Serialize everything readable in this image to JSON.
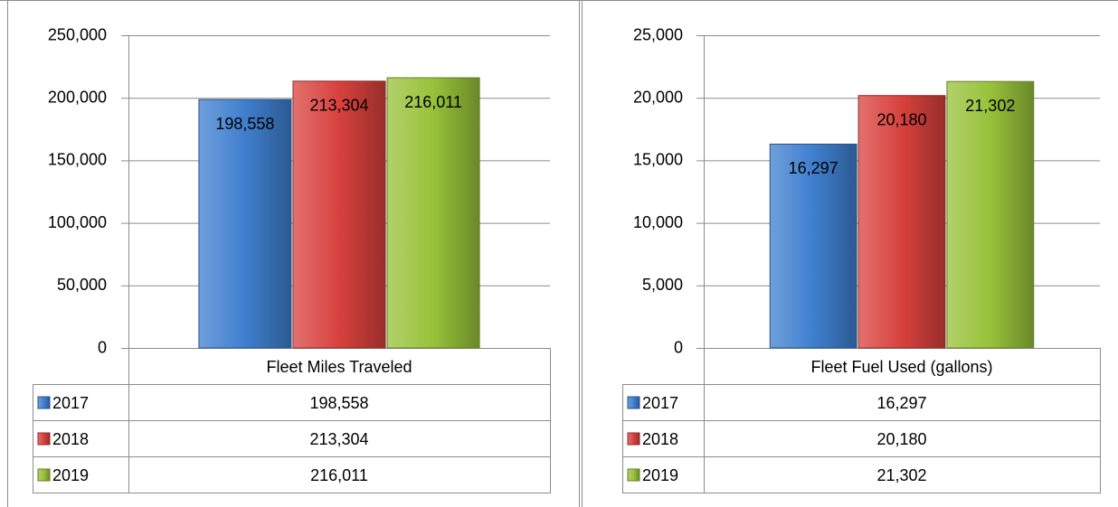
{
  "chart_data": [
    {
      "type": "bar",
      "categories": [
        "Fleet Miles Traveled"
      ],
      "series": [
        {
          "name": "2017",
          "color": "#3f7fcf",
          "values": [
            198558
          ],
          "value_labels": [
            "198,558"
          ]
        },
        {
          "name": "2018",
          "color": "#d8413d",
          "values": [
            213304
          ],
          "value_labels": [
            "213,304"
          ]
        },
        {
          "name": "2019",
          "color": "#98c23a",
          "values": [
            216011
          ],
          "value_labels": [
            "216,011"
          ]
        }
      ],
      "ylim": [
        0,
        250000
      ],
      "yticks": [
        0,
        {
          "value": 50000,
          "label": "50,000"
        },
        {
          "value": 100000,
          "label": "100,000"
        },
        {
          "value": 150000,
          "label": "150,000"
        },
        {
          "value": 200000,
          "label": "200,000"
        },
        {
          "value": 250000,
          "label": "250,000"
        }
      ],
      "grid": true
    },
    {
      "type": "bar",
      "categories": [
        "Fleet Fuel Used (gallons)"
      ],
      "series": [
        {
          "name": "2017",
          "color": "#3f7fcf",
          "values": [
            16297
          ],
          "value_labels": [
            "16,297"
          ]
        },
        {
          "name": "2018",
          "color": "#d8413d",
          "values": [
            20180
          ],
          "value_labels": [
            "20,180"
          ]
        },
        {
          "name": "2019",
          "color": "#98c23a",
          "values": [
            21302
          ],
          "value_labels": [
            "21,302"
          ]
        }
      ],
      "ylim": [
        0,
        25000
      ],
      "yticks": [
        0,
        {
          "value": 5000,
          "label": "5,000"
        },
        {
          "value": 10000,
          "label": "10,000"
        },
        {
          "value": 15000,
          "label": "15,000"
        },
        {
          "value": 20000,
          "label": "20,000"
        },
        {
          "value": 25000,
          "label": "25,000"
        }
      ],
      "grid": true
    }
  ]
}
